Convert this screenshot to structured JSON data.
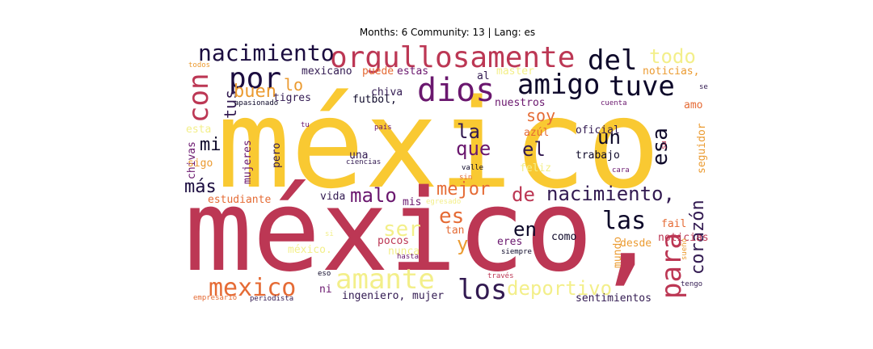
{
  "chart_data": {
    "type": "wordcloud",
    "title": "Months: 6 Community: 13 | Lang: es",
    "palette": [
      "#f9c932",
      "#bc3754",
      "#e56b35",
      "#f3ef8a",
      "#321a51",
      "#6a176e",
      "#0d0829",
      "#eb9b31"
    ],
    "words": [
      {
        "text": "méxico",
        "weight": 100,
        "color": "#f9c932"
      },
      {
        "text": "méxico,",
        "weight": 96,
        "color": "#bc3754"
      },
      {
        "text": "orgullosamente",
        "weight": 22,
        "color": "#bc3754"
      },
      {
        "text": "nacimiento",
        "weight": 16,
        "color": "#1b0c3f"
      },
      {
        "text": "del",
        "weight": 20,
        "color": "#0d0829"
      },
      {
        "text": "todo",
        "weight": 14,
        "color": "#f3ef8a"
      },
      {
        "text": "por",
        "weight": 22,
        "color": "#1b0c3f"
      },
      {
        "text": "con",
        "weight": 18,
        "color": "#bc3754"
      },
      {
        "text": "amigo",
        "weight": 22,
        "color": "#0d0829"
      },
      {
        "text": "tuve",
        "weight": 22,
        "color": "#0d0829"
      },
      {
        "text": "dios",
        "weight": 22,
        "color": "#6a176e"
      },
      {
        "text": "tus",
        "weight": 14,
        "color": "#321a51"
      },
      {
        "text": "lo",
        "weight": 14,
        "color": "#eb9b31"
      },
      {
        "text": "buen",
        "weight": 14,
        "color": "#eb9b31"
      },
      {
        "text": "soy",
        "weight": 14,
        "color": "#e56b35"
      },
      {
        "text": "la",
        "weight": 16,
        "color": "#321a51"
      },
      {
        "text": "un",
        "weight": 14,
        "color": "#0d0829"
      },
      {
        "text": "esa",
        "weight": 16,
        "color": "#0d0829"
      },
      {
        "text": "que",
        "weight": 16,
        "color": "#6a176e"
      },
      {
        "text": "el",
        "weight": 16,
        "color": "#321a51"
      },
      {
        "text": "mi",
        "weight": 14,
        "color": "#0d0829"
      },
      {
        "text": "más",
        "weight": 14,
        "color": "#1b0c3f"
      },
      {
        "text": "malo",
        "weight": 16,
        "color": "#6a176e"
      },
      {
        "text": "mejor",
        "weight": 16,
        "color": "#e56b35"
      },
      {
        "text": "de",
        "weight": 16,
        "color": "#bc3754"
      },
      {
        "text": "nacimiento,",
        "weight": 20,
        "color": "#321a51"
      },
      {
        "text": "para",
        "weight": 22,
        "color": "#bc3754"
      },
      {
        "text": "corazón",
        "weight": 16,
        "color": "#321a51"
      },
      {
        "text": "las",
        "weight": 22,
        "color": "#0d0829"
      },
      {
        "text": "es",
        "weight": 16,
        "color": "#e56b35"
      },
      {
        "text": "ser",
        "weight": 16,
        "color": "#f3ef8a"
      },
      {
        "text": "y",
        "weight": 16,
        "color": "#eb9b31"
      },
      {
        "text": "en",
        "weight": 16,
        "color": "#0d0829"
      },
      {
        "text": "mexico",
        "weight": 20,
        "color": "#e56b35"
      },
      {
        "text": "amante",
        "weight": 22,
        "color": "#f3ef8a"
      },
      {
        "text": "los",
        "weight": 22,
        "color": "#321a51"
      },
      {
        "text": "deportivo",
        "weight": 16,
        "color": "#f3ef8a"
      },
      {
        "text": "mexicano",
        "weight": 9,
        "color": "#321a51"
      },
      {
        "text": "puede",
        "weight": 9,
        "color": "#e56b35"
      },
      {
        "text": "estas",
        "weight": 9,
        "color": "#6a176e"
      },
      {
        "text": "al",
        "weight": 9,
        "color": "#321a51"
      },
      {
        "text": "master",
        "weight": 9,
        "color": "#f3ef8a"
      },
      {
        "text": "noticias,",
        "weight": 9,
        "color": "#eb9b31"
      },
      {
        "text": "chiva",
        "weight": 9,
        "color": "#321a51"
      },
      {
        "text": "tigres",
        "weight": 9,
        "color": "#321a51"
      },
      {
        "text": "futbol,",
        "weight": 9,
        "color": "#0d0829"
      },
      {
        "text": "nuestros",
        "weight": 9,
        "color": "#6a176e"
      },
      {
        "text": "apasionado",
        "weight": 6,
        "color": "#0d0829"
      },
      {
        "text": "cuenta",
        "weight": 6,
        "color": "#6a176e"
      },
      {
        "text": "se",
        "weight": 6,
        "color": "#321a51"
      },
      {
        "text": "amo",
        "weight": 9,
        "color": "#e56b35"
      },
      {
        "text": "todos",
        "weight": 6,
        "color": "#eb9b31"
      },
      {
        "text": "esta",
        "weight": 9,
        "color": "#f3ef8a"
      },
      {
        "text": "tu",
        "weight": 6,
        "color": "#6a176e"
      },
      {
        "text": "país",
        "weight": 6,
        "color": "#6a176e"
      },
      {
        "text": "azúl",
        "weight": 9,
        "color": "#e56b35"
      },
      {
        "text": "oficial",
        "weight": 9,
        "color": "#321a51"
      },
      {
        "text": "trabajo",
        "weight": 9,
        "color": "#0d0829"
      },
      {
        "text": "su",
        "weight": 6,
        "color": "#bc3754"
      },
      {
        "text": "seguidor",
        "weight": 9,
        "color": "#eb9b31"
      },
      {
        "text": "chivas",
        "weight": 9,
        "color": "#6a176e"
      },
      {
        "text": "mujeres",
        "weight": 9,
        "color": "#6a176e"
      },
      {
        "text": "pero",
        "weight": 9,
        "color": "#321a51"
      },
      {
        "text": "una",
        "weight": 9,
        "color": "#321a51"
      },
      {
        "text": "ciencias",
        "weight": 6,
        "color": "#321a51"
      },
      {
        "text": "valle",
        "weight": 6,
        "color": "#0d0829"
      },
      {
        "text": "feliz",
        "weight": 9,
        "color": "#f3ef8a"
      },
      {
        "text": "sin",
        "weight": 6,
        "color": "#e56b35"
      },
      {
        "text": "cara",
        "weight": 6,
        "color": "#6a176e"
      },
      {
        "text": "sigo",
        "weight": 9,
        "color": "#eb9b31"
      },
      {
        "text": "estudiante",
        "weight": 9,
        "color": "#e56b35"
      },
      {
        "text": "vida",
        "weight": 9,
        "color": "#321a51"
      },
      {
        "text": "mis",
        "weight": 9,
        "color": "#6a176e"
      },
      {
        "text": "egresado",
        "weight": 6,
        "color": "#f3ef8a"
      },
      {
        "text": "fail",
        "weight": 9,
        "color": "#e56b35"
      },
      {
        "text": "noticias",
        "weight": 9,
        "color": "#bc3754"
      },
      {
        "text": "desde",
        "weight": 9,
        "color": "#eb9b31"
      },
      {
        "text": "mundo",
        "weight": 9,
        "color": "#eb9b31"
      },
      {
        "text": "sueño",
        "weight": 6,
        "color": "#eb9b31"
      },
      {
        "text": "tan",
        "weight": 9,
        "color": "#e56b35"
      },
      {
        "text": "pocos",
        "weight": 9,
        "color": "#bc3754"
      },
      {
        "text": "nunca",
        "weight": 9,
        "color": "#f3ef8a"
      },
      {
        "text": "eres",
        "weight": 9,
        "color": "#6a176e"
      },
      {
        "text": "como",
        "weight": 9,
        "color": "#0d0829"
      },
      {
        "text": "méxico.",
        "weight": 9,
        "color": "#f3ef8a"
      },
      {
        "text": "si",
        "weight": 6,
        "color": "#f3ef8a"
      },
      {
        "text": "hasta",
        "weight": 6,
        "color": "#6a176e"
      },
      {
        "text": "siempre",
        "weight": 6,
        "color": "#0d0829"
      },
      {
        "text": "eso",
        "weight": 6,
        "color": "#0d0829"
      },
      {
        "text": "ni",
        "weight": 9,
        "color": "#6a176e"
      },
      {
        "text": "través",
        "weight": 6,
        "color": "#bc3754"
      },
      {
        "text": "ingeniero,",
        "weight": 9,
        "color": "#321a51"
      },
      {
        "text": "mujer",
        "weight": 9,
        "color": "#321a51"
      },
      {
        "text": "empresario",
        "weight": 6,
        "color": "#e56b35"
      },
      {
        "text": "periodista",
        "weight": 6,
        "color": "#321a51"
      },
      {
        "text": "sentimientos",
        "weight": 9,
        "color": "#321a51"
      },
      {
        "text": "tengo",
        "weight": 6,
        "color": "#321a51"
      }
    ]
  }
}
